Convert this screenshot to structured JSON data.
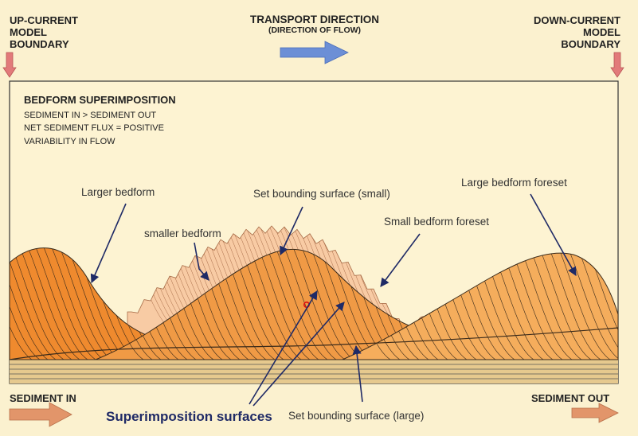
{
  "header": {
    "left": [
      "UP-CURRENT",
      "MODEL",
      "BOUNDARY"
    ],
    "center_title": "TRANSPORT DIRECTION",
    "center_sub": "(DIRECTION OF FLOW)",
    "right": [
      "DOWN-CURRENT",
      "MODEL",
      "BOUNDARY"
    ]
  },
  "inset": {
    "title": "BEDFORM SUPERIMPOSITION",
    "lines": [
      "SEDIMENT IN > SEDIMENT OUT",
      "NET SEDIMENT FLUX = POSITIVE",
      "VARIABILITY IN FLOW"
    ]
  },
  "labels": {
    "larger_bedform": "Larger bedform",
    "smaller_bedform": "smaller bedform",
    "set_bounding_small": "Set bounding surface (small)",
    "small_bedform_foreset": "Small bedform foreset",
    "large_bedform_foreset": "Large bedform foreset",
    "set_bounding_large": "Set bounding surface (large)",
    "superimposition_surfaces": "Superimposition surfaces"
  },
  "footer": {
    "sediment_in": "SEDIMENT IN",
    "sediment_out": "SEDIMENT OUT"
  },
  "colors": {
    "background": "#fbf1cf",
    "panel": "#fdf3d2",
    "bedform_dark": "#ef8a2e",
    "bedform_mid": "#f4a855",
    "small_bedform": "#f8cba4",
    "flow_arrow": "#6c8fd6",
    "boundary_arrow": "#e27a7a",
    "sediment_arrow": "#e2956a",
    "base_layers": "#e6c98e"
  }
}
